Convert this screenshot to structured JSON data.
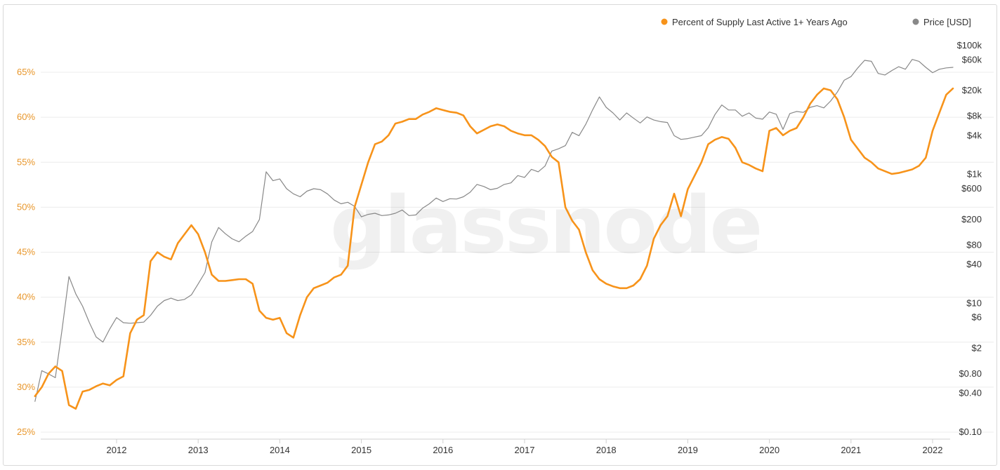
{
  "watermark": "glassnode",
  "chart_data": {
    "type": "line",
    "x_ticks": [
      "2012",
      "2013",
      "2014",
      "2015",
      "2016",
      "2017",
      "2018",
      "2019",
      "2020",
      "2021",
      "2022"
    ],
    "y_left_ticks": [
      "25%",
      "30%",
      "35%",
      "40%",
      "45%",
      "50%",
      "55%",
      "60%",
      "65%"
    ],
    "y_left_range": [
      25,
      66
    ],
    "y_right_ticks": [
      "$100k",
      "$60k",
      "$20k",
      "$8k",
      "$4k",
      "$1k",
      "$600",
      "$200",
      "$80",
      "$40",
      "$10",
      "$6",
      "$2",
      "$0.80",
      "$0.40",
      "$0.10"
    ],
    "y_right_scale": "log",
    "grid": "horizontal",
    "legend_position": "top-right",
    "series": [
      {
        "name": "Percent of Supply Last Active 1+ Years Ago",
        "color": "#f7931a",
        "axis": "left",
        "points": [
          [
            "2011-01-01",
            29.0
          ],
          [
            "2011-02-01",
            30.0
          ],
          [
            "2011-03-01",
            31.5
          ],
          [
            "2011-04-01",
            32.3
          ],
          [
            "2011-05-01",
            31.8
          ],
          [
            "2011-06-01",
            28.0
          ],
          [
            "2011-07-01",
            27.6
          ],
          [
            "2011-08-01",
            29.5
          ],
          [
            "2011-09-01",
            29.7
          ],
          [
            "2011-10-01",
            30.1
          ],
          [
            "2011-11-01",
            30.4
          ],
          [
            "2011-12-01",
            30.2
          ],
          [
            "2012-01-01",
            30.8
          ],
          [
            "2012-02-01",
            31.2
          ],
          [
            "2012-03-01",
            36.0
          ],
          [
            "2012-04-01",
            37.5
          ],
          [
            "2012-05-01",
            38.0
          ],
          [
            "2012-06-01",
            44.0
          ],
          [
            "2012-07-01",
            45.0
          ],
          [
            "2012-08-01",
            44.5
          ],
          [
            "2012-09-01",
            44.2
          ],
          [
            "2012-10-01",
            46.0
          ],
          [
            "2012-11-01",
            47.0
          ],
          [
            "2012-12-01",
            48.0
          ],
          [
            "2013-01-01",
            47.0
          ],
          [
            "2013-02-01",
            45.0
          ],
          [
            "2013-03-01",
            42.5
          ],
          [
            "2013-04-01",
            41.8
          ],
          [
            "2013-05-01",
            41.8
          ],
          [
            "2013-06-01",
            41.9
          ],
          [
            "2013-07-01",
            42.0
          ],
          [
            "2013-08-01",
            42.0
          ],
          [
            "2013-09-01",
            41.5
          ],
          [
            "2013-10-01",
            38.5
          ],
          [
            "2013-11-01",
            37.7
          ],
          [
            "2013-12-01",
            37.5
          ],
          [
            "2014-01-01",
            37.7
          ],
          [
            "2014-02-01",
            36.0
          ],
          [
            "2014-03-01",
            35.5
          ],
          [
            "2014-04-01",
            38.0
          ],
          [
            "2014-05-01",
            40.0
          ],
          [
            "2014-06-01",
            41.0
          ],
          [
            "2014-07-01",
            41.3
          ],
          [
            "2014-08-01",
            41.6
          ],
          [
            "2014-09-01",
            42.2
          ],
          [
            "2014-10-01",
            42.5
          ],
          [
            "2014-11-01",
            43.5
          ],
          [
            "2014-12-01",
            50.0
          ],
          [
            "2015-01-01",
            52.5
          ],
          [
            "2015-02-01",
            55.0
          ],
          [
            "2015-03-01",
            57.0
          ],
          [
            "2015-04-01",
            57.3
          ],
          [
            "2015-05-01",
            58.0
          ],
          [
            "2015-06-01",
            59.3
          ],
          [
            "2015-07-01",
            59.5
          ],
          [
            "2015-08-01",
            59.8
          ],
          [
            "2015-09-01",
            59.8
          ],
          [
            "2015-10-01",
            60.3
          ],
          [
            "2015-11-01",
            60.6
          ],
          [
            "2015-12-01",
            61.0
          ],
          [
            "2016-01-01",
            60.8
          ],
          [
            "2016-02-01",
            60.6
          ],
          [
            "2016-03-01",
            60.5
          ],
          [
            "2016-04-01",
            60.2
          ],
          [
            "2016-05-01",
            59.0
          ],
          [
            "2016-06-01",
            58.2
          ],
          [
            "2016-07-01",
            58.6
          ],
          [
            "2016-08-01",
            59.0
          ],
          [
            "2016-09-01",
            59.2
          ],
          [
            "2016-10-01",
            59.0
          ],
          [
            "2016-11-01",
            58.5
          ],
          [
            "2016-12-01",
            58.2
          ],
          [
            "2017-01-01",
            58.0
          ],
          [
            "2017-02-01",
            58.0
          ],
          [
            "2017-03-01",
            57.5
          ],
          [
            "2017-04-01",
            56.8
          ],
          [
            "2017-05-01",
            55.6
          ],
          [
            "2017-06-01",
            55.0
          ],
          [
            "2017-07-01",
            50.0
          ],
          [
            "2017-08-01",
            48.5
          ],
          [
            "2017-09-01",
            47.5
          ],
          [
            "2017-10-01",
            45.0
          ],
          [
            "2017-11-01",
            43.0
          ],
          [
            "2017-12-01",
            42.0
          ],
          [
            "2018-01-01",
            41.5
          ],
          [
            "2018-02-01",
            41.2
          ],
          [
            "2018-03-01",
            41.0
          ],
          [
            "2018-04-01",
            41.0
          ],
          [
            "2018-05-01",
            41.3
          ],
          [
            "2018-06-01",
            42.0
          ],
          [
            "2018-07-01",
            43.5
          ],
          [
            "2018-08-01",
            46.5
          ],
          [
            "2018-09-01",
            48.0
          ],
          [
            "2018-10-01",
            49.0
          ],
          [
            "2018-11-01",
            51.5
          ],
          [
            "2018-12-01",
            49.0
          ],
          [
            "2019-01-01",
            52.0
          ],
          [
            "2019-02-01",
            53.5
          ],
          [
            "2019-03-01",
            55.0
          ],
          [
            "2019-04-01",
            57.0
          ],
          [
            "2019-05-01",
            57.5
          ],
          [
            "2019-06-01",
            57.8
          ],
          [
            "2019-07-01",
            57.6
          ],
          [
            "2019-08-01",
            56.6
          ],
          [
            "2019-09-01",
            55.0
          ],
          [
            "2019-10-01",
            54.7
          ],
          [
            "2019-11-01",
            54.3
          ],
          [
            "2019-12-01",
            54.0
          ],
          [
            "2020-01-01",
            58.5
          ],
          [
            "2020-02-01",
            58.8
          ],
          [
            "2020-03-01",
            58.0
          ],
          [
            "2020-04-01",
            58.5
          ],
          [
            "2020-05-01",
            58.8
          ],
          [
            "2020-06-01",
            60.0
          ],
          [
            "2020-07-01",
            61.5
          ],
          [
            "2020-08-01",
            62.5
          ],
          [
            "2020-09-01",
            63.2
          ],
          [
            "2020-10-01",
            63.0
          ],
          [
            "2020-11-01",
            62.0
          ],
          [
            "2020-12-01",
            60.0
          ],
          [
            "2021-01-01",
            57.5
          ],
          [
            "2021-02-01",
            56.5
          ],
          [
            "2021-03-01",
            55.5
          ],
          [
            "2021-04-01",
            55.0
          ],
          [
            "2021-05-01",
            54.3
          ],
          [
            "2021-06-01",
            54.0
          ],
          [
            "2021-07-01",
            53.7
          ],
          [
            "2021-08-01",
            53.8
          ],
          [
            "2021-09-01",
            54.0
          ],
          [
            "2021-10-01",
            54.2
          ],
          [
            "2021-11-01",
            54.6
          ],
          [
            "2021-12-01",
            55.5
          ],
          [
            "2022-01-01",
            58.5
          ],
          [
            "2022-02-01",
            60.5
          ],
          [
            "2022-03-01",
            62.5
          ],
          [
            "2022-04-01",
            63.2
          ]
        ]
      },
      {
        "name": "Price [USD]",
        "color": "#888888",
        "axis": "right",
        "points": [
          [
            "2011-01-01",
            0.3
          ],
          [
            "2011-02-01",
            0.9
          ],
          [
            "2011-03-01",
            0.8
          ],
          [
            "2011-04-01",
            0.7
          ],
          [
            "2011-05-01",
            4.0
          ],
          [
            "2011-06-01",
            26.0
          ],
          [
            "2011-07-01",
            14.0
          ],
          [
            "2011-08-01",
            9.0
          ],
          [
            "2011-09-01",
            5.0
          ],
          [
            "2011-10-01",
            3.0
          ],
          [
            "2011-11-01",
            2.5
          ],
          [
            "2011-12-01",
            4.0
          ],
          [
            "2012-01-01",
            6.0
          ],
          [
            "2012-02-01",
            5.0
          ],
          [
            "2012-03-01",
            4.9
          ],
          [
            "2012-04-01",
            5.0
          ],
          [
            "2012-05-01",
            5.1
          ],
          [
            "2012-06-01",
            6.5
          ],
          [
            "2012-07-01",
            9.0
          ],
          [
            "2012-08-01",
            11.0
          ],
          [
            "2012-09-01",
            12.0
          ],
          [
            "2012-10-01",
            11.0
          ],
          [
            "2012-11-01",
            11.5
          ],
          [
            "2012-12-01",
            13.5
          ],
          [
            "2013-01-01",
            20.0
          ],
          [
            "2013-02-01",
            30.0
          ],
          [
            "2013-03-01",
            90.0
          ],
          [
            "2013-04-01",
            150.0
          ],
          [
            "2013-05-01",
            120.0
          ],
          [
            "2013-06-01",
            100.0
          ],
          [
            "2013-07-01",
            90.0
          ],
          [
            "2013-08-01",
            110.0
          ],
          [
            "2013-09-01",
            130.0
          ],
          [
            "2013-10-01",
            200.0
          ],
          [
            "2013-11-01",
            1100.0
          ],
          [
            "2013-12-01",
            800.0
          ],
          [
            "2014-01-01",
            850.0
          ],
          [
            "2014-02-01",
            600.0
          ],
          [
            "2014-03-01",
            500.0
          ],
          [
            "2014-04-01",
            450.0
          ],
          [
            "2014-05-01",
            550.0
          ],
          [
            "2014-06-01",
            600.0
          ],
          [
            "2014-07-01",
            580.0
          ],
          [
            "2014-08-01",
            500.0
          ],
          [
            "2014-09-01",
            400.0
          ],
          [
            "2014-10-01",
            350.0
          ],
          [
            "2014-11-01",
            370.0
          ],
          [
            "2014-12-01",
            320.0
          ],
          [
            "2015-01-01",
            220.0
          ],
          [
            "2015-02-01",
            240.0
          ],
          [
            "2015-03-01",
            250.0
          ],
          [
            "2015-04-01",
            230.0
          ],
          [
            "2015-05-01",
            235.0
          ],
          [
            "2015-06-01",
            250.0
          ],
          [
            "2015-07-01",
            280.0
          ],
          [
            "2015-08-01",
            230.0
          ],
          [
            "2015-09-01",
            235.0
          ],
          [
            "2015-10-01",
            300.0
          ],
          [
            "2015-11-01",
            350.0
          ],
          [
            "2015-12-01",
            430.0
          ],
          [
            "2016-01-01",
            380.0
          ],
          [
            "2016-02-01",
            420.0
          ],
          [
            "2016-03-01",
            415.0
          ],
          [
            "2016-04-01",
            450.0
          ],
          [
            "2016-05-01",
            530.0
          ],
          [
            "2016-06-01",
            700.0
          ],
          [
            "2016-07-01",
            650.0
          ],
          [
            "2016-08-01",
            580.0
          ],
          [
            "2016-09-01",
            610.0
          ],
          [
            "2016-10-01",
            700.0
          ],
          [
            "2016-11-01",
            740.0
          ],
          [
            "2016-12-01",
            960.0
          ],
          [
            "2017-01-01",
            900.0
          ],
          [
            "2017-02-01",
            1200.0
          ],
          [
            "2017-03-01",
            1100.0
          ],
          [
            "2017-04-01",
            1350.0
          ],
          [
            "2017-05-01",
            2300.0
          ],
          [
            "2017-06-01",
            2500.0
          ],
          [
            "2017-07-01",
            2800.0
          ],
          [
            "2017-08-01",
            4500.0
          ],
          [
            "2017-09-01",
            4000.0
          ],
          [
            "2017-10-01",
            6000.0
          ],
          [
            "2017-11-01",
            10000.0
          ],
          [
            "2017-12-01",
            16000.0
          ],
          [
            "2018-01-01",
            11000.0
          ],
          [
            "2018-02-01",
            9000.0
          ],
          [
            "2018-03-01",
            7000.0
          ],
          [
            "2018-04-01",
            9000.0
          ],
          [
            "2018-05-01",
            7500.0
          ],
          [
            "2018-06-01",
            6300.0
          ],
          [
            "2018-07-01",
            7800.0
          ],
          [
            "2018-08-01",
            7000.0
          ],
          [
            "2018-09-01",
            6600.0
          ],
          [
            "2018-10-01",
            6400.0
          ],
          [
            "2018-11-01",
            4000.0
          ],
          [
            "2018-12-01",
            3500.0
          ],
          [
            "2019-01-01",
            3600.0
          ],
          [
            "2019-02-01",
            3800.0
          ],
          [
            "2019-03-01",
            4000.0
          ],
          [
            "2019-04-01",
            5300.0
          ],
          [
            "2019-05-01",
            8500.0
          ],
          [
            "2019-06-01",
            12000.0
          ],
          [
            "2019-07-01",
            10000.0
          ],
          [
            "2019-08-01",
            10000.0
          ],
          [
            "2019-09-01",
            8000.0
          ],
          [
            "2019-10-01",
            9000.0
          ],
          [
            "2019-11-01",
            7500.0
          ],
          [
            "2019-12-01",
            7200.0
          ],
          [
            "2020-01-01",
            9300.0
          ],
          [
            "2020-02-01",
            8600.0
          ],
          [
            "2020-03-01",
            5000.0
          ],
          [
            "2020-04-01",
            8800.0
          ],
          [
            "2020-05-01",
            9500.0
          ],
          [
            "2020-06-01",
            9200.0
          ],
          [
            "2020-07-01",
            11000.0
          ],
          [
            "2020-08-01",
            11700.0
          ],
          [
            "2020-09-01",
            10800.0
          ],
          [
            "2020-10-01",
            13800.0
          ],
          [
            "2020-11-01",
            19000.0
          ],
          [
            "2020-12-01",
            29000.0
          ],
          [
            "2021-01-01",
            33000.0
          ],
          [
            "2021-02-01",
            45000.0
          ],
          [
            "2021-03-01",
            59000.0
          ],
          [
            "2021-04-01",
            57000.0
          ],
          [
            "2021-05-01",
            37000.0
          ],
          [
            "2021-06-01",
            35000.0
          ],
          [
            "2021-07-01",
            41000.0
          ],
          [
            "2021-08-01",
            47000.0
          ],
          [
            "2021-09-01",
            43000.0
          ],
          [
            "2021-10-01",
            61000.0
          ],
          [
            "2021-11-01",
            57000.0
          ],
          [
            "2021-12-01",
            46000.0
          ],
          [
            "2022-01-01",
            38000.0
          ],
          [
            "2022-02-01",
            43000.0
          ],
          [
            "2022-03-01",
            45000.0
          ],
          [
            "2022-04-01",
            46000.0
          ]
        ]
      }
    ]
  }
}
